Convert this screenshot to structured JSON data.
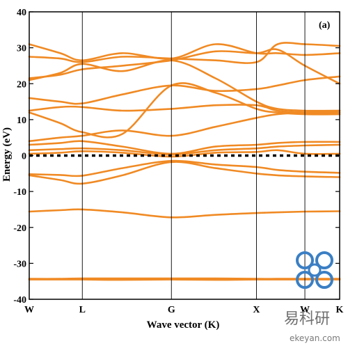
{
  "chart_data": {
    "type": "line",
    "panel_label": "(a)",
    "xlabel": "Wave vector (K)",
    "ylabel": "Energy (eV)",
    "ylim": [
      -40,
      40
    ],
    "yticks": [
      -40,
      -30,
      -20,
      -10,
      0,
      10,
      20,
      30,
      40
    ],
    "xlim": [
      0,
      1
    ],
    "x_points": [
      {
        "label": "W",
        "x": 0.0
      },
      {
        "label": "L",
        "x": 0.171
      },
      {
        "label": "G",
        "x": 0.458
      },
      {
        "label": "X",
        "x": 0.732
      },
      {
        "label": "W",
        "x": 0.888
      },
      {
        "label": "K",
        "x": 1.0
      }
    ],
    "fermi_level": 0,
    "grid": false,
    "series": [
      {
        "x": [
          0,
          0.1,
          0.171,
          0.3,
          0.458,
          0.6,
          0.732,
          0.8,
          0.888,
          1.0
        ],
        "values": [
          -34.3,
          -34.3,
          -34.2,
          -34.2,
          -34.2,
          -34.2,
          -34.3,
          -34.3,
          -34.3,
          -34.3
        ]
      },
      {
        "x": [
          0,
          0.1,
          0.171,
          0.3,
          0.458,
          0.6,
          0.732,
          0.8,
          0.888,
          1.0
        ],
        "values": [
          -34.5,
          -34.5,
          -34.5,
          -34.6,
          -34.5,
          -34.6,
          -34.5,
          -34.5,
          -34.5,
          -34.5
        ]
      },
      {
        "x": [
          0,
          0.1,
          0.171,
          0.3,
          0.458,
          0.6,
          0.732,
          0.8,
          0.888,
          1.0
        ],
        "values": [
          -15.6,
          -15.2,
          -15.0,
          -15.8,
          -17.2,
          -16.5,
          -16.0,
          -15.8,
          -15.6,
          -15.5
        ]
      },
      {
        "x": [
          0,
          0.1,
          0.171,
          0.3,
          0.458,
          0.6,
          0.732,
          0.8,
          0.888,
          1.0
        ],
        "values": [
          -5.5,
          -6.8,
          -7.8,
          -5.5,
          -1.8,
          -3.5,
          -5.0,
          -5.5,
          -5.8,
          -6.0
        ]
      },
      {
        "x": [
          0,
          0.1,
          0.171,
          0.3,
          0.458,
          0.6,
          0.732,
          0.8,
          0.888,
          1.0
        ],
        "values": [
          -5.2,
          -5.4,
          -5.6,
          -3.5,
          -1.5,
          -2.5,
          -3.2,
          -4.0,
          -4.5,
          -4.8
        ]
      },
      {
        "x": [
          0,
          0.1,
          0.171,
          0.3,
          0.458,
          0.6,
          0.732,
          0.8,
          0.888,
          1.0
        ],
        "values": [
          0.5,
          0.8,
          1.2,
          0.8,
          -0.3,
          0.8,
          1.0,
          1.5,
          0.5,
          0.5
        ]
      },
      {
        "x": [
          0,
          0.1,
          0.171,
          0.3,
          0.458,
          0.6,
          0.732,
          0.8,
          0.888,
          1.0
        ],
        "values": [
          1.5,
          1.8,
          2.0,
          1.5,
          0.3,
          1.5,
          2.0,
          2.5,
          2.8,
          3.0
        ]
      },
      {
        "x": [
          0,
          0.1,
          0.171,
          0.3,
          0.458,
          0.6,
          0.732,
          0.8,
          0.888,
          1.0
        ],
        "values": [
          3.0,
          3.5,
          4.0,
          2.5,
          0.5,
          2.5,
          3.0,
          3.5,
          3.8,
          3.8
        ]
      },
      {
        "x": [
          0,
          0.1,
          0.171,
          0.3,
          0.458,
          0.6,
          0.732,
          0.8,
          0.888,
          1.0
        ],
        "values": [
          4.0,
          5.0,
          5.5,
          7.0,
          5.5,
          8.0,
          10.5,
          11.5,
          12.0,
          12.5
        ]
      },
      {
        "x": [
          0,
          0.1,
          0.171,
          0.3,
          0.458,
          0.6,
          0.732,
          0.8,
          0.888,
          1.0
        ],
        "values": [
          12.0,
          9.0,
          6.5,
          6.0,
          19.5,
          17.5,
          13.0,
          12.0,
          11.5,
          11.5
        ]
      },
      {
        "x": [
          0,
          0.1,
          0.171,
          0.3,
          0.458,
          0.6,
          0.732,
          0.8,
          0.888,
          1.0
        ],
        "values": [
          12.5,
          13.5,
          13.5,
          12.5,
          13.0,
          14.0,
          14.0,
          12.5,
          12.0,
          12.0
        ]
      },
      {
        "x": [
          0,
          0.1,
          0.171,
          0.3,
          0.458,
          0.6,
          0.732,
          0.8,
          0.888,
          1.0
        ],
        "values": [
          16.0,
          15.0,
          14.5,
          17.0,
          19.5,
          18.0,
          18.5,
          19.5,
          21.0,
          22.0
        ]
      },
      {
        "x": [
          0,
          0.1,
          0.171,
          0.3,
          0.458,
          0.6,
          0.732,
          0.8,
          0.888,
          1.0
        ],
        "values": [
          21.0,
          23.0,
          25.5,
          23.5,
          26.5,
          21.5,
          15.0,
          13.0,
          12.5,
          12.5
        ]
      },
      {
        "x": [
          0,
          0.1,
          0.171,
          0.3,
          0.458,
          0.6,
          0.732,
          0.8,
          0.888,
          1.0
        ],
        "values": [
          21.5,
          22.5,
          24.0,
          25.0,
          26.5,
          29.0,
          28.5,
          29.5,
          25.0,
          20.0
        ]
      },
      {
        "x": [
          0,
          0.1,
          0.171,
          0.3,
          0.458,
          0.6,
          0.732,
          0.8,
          0.888,
          1.0
        ],
        "values": [
          27.5,
          27.0,
          26.0,
          27.5,
          27.0,
          26.5,
          26.0,
          31.0,
          31.0,
          30.5
        ]
      },
      {
        "x": [
          0,
          0.1,
          0.171,
          0.3,
          0.458,
          0.6,
          0.732,
          0.8,
          0.888,
          1.0
        ],
        "values": [
          31.0,
          28.5,
          26.5,
          28.5,
          27.0,
          31.0,
          28.5,
          28.5,
          28.0,
          28.5
        ]
      }
    ]
  },
  "colors": {
    "band": "#F08A24",
    "axis": "#000000",
    "watermark_blue": "#3B7FC4"
  },
  "watermark": {
    "icon": "ekeyan-logo-icon",
    "text": "易科研",
    "url": "ekeyan.com"
  }
}
